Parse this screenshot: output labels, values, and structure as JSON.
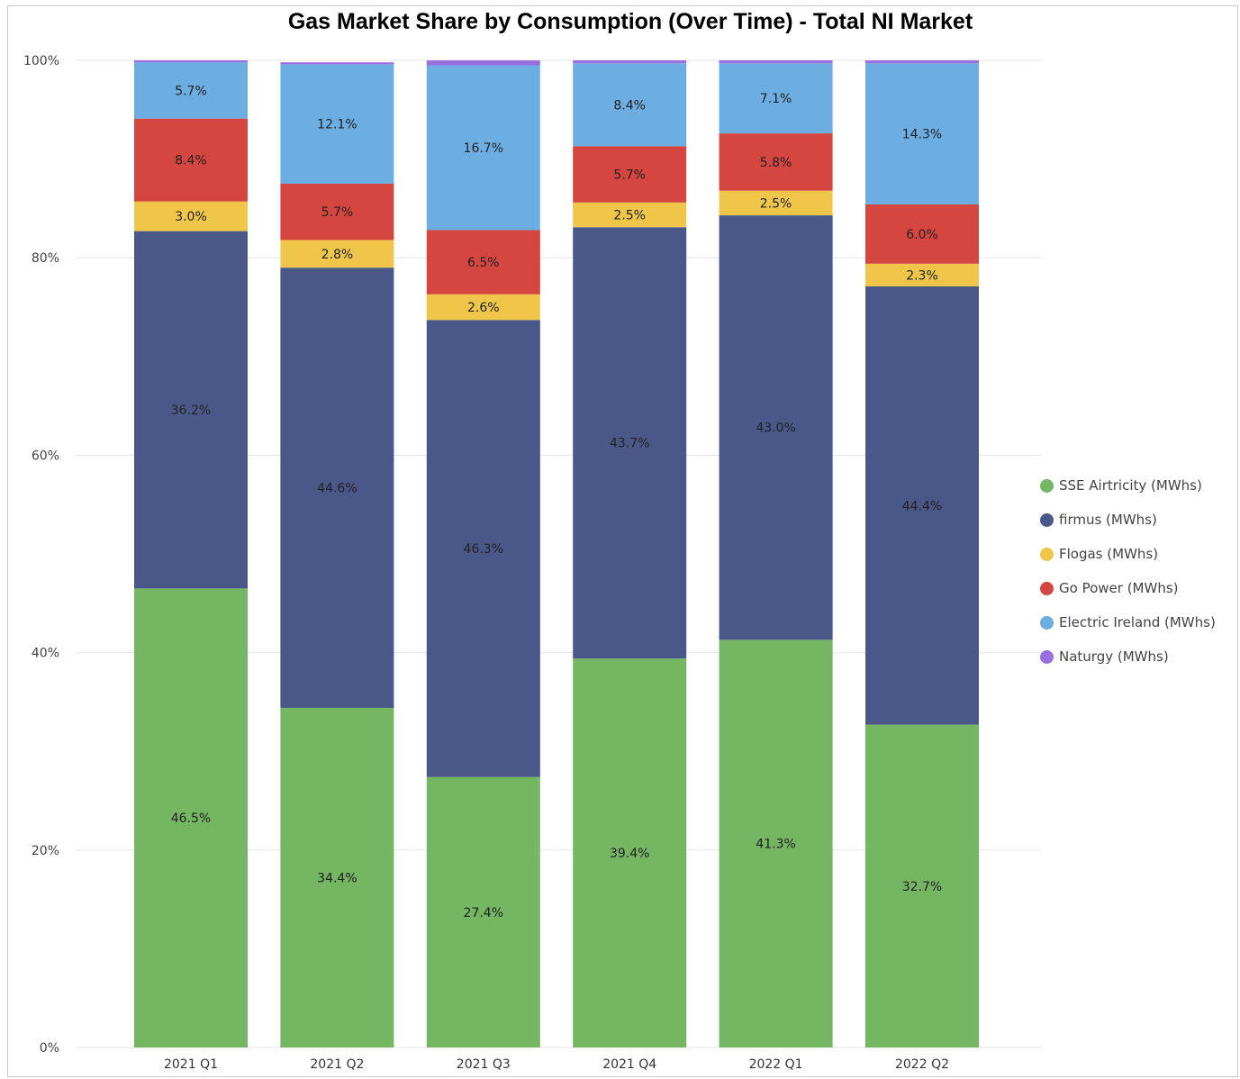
{
  "chart_data": {
    "type": "bar",
    "stacked": "percent",
    "title": "Gas Market Share by Consumption (Over Time) - Total NI Market",
    "categories": [
      "2021 Q1",
      "2021 Q2",
      "2021 Q3",
      "2021 Q4",
      "2022 Q1",
      "2022 Q2"
    ],
    "y_ticks": [
      "0%",
      "20%",
      "40%",
      "60%",
      "80%",
      "100%"
    ],
    "ylim": [
      0,
      100
    ],
    "grid": true,
    "legend_position": "right",
    "series": [
      {
        "name": "SSE Airtricity (MWhs)",
        "color": "#74b662",
        "values": [
          46.5,
          34.4,
          27.4,
          39.4,
          41.3,
          32.7
        ],
        "labels": [
          "46.5%",
          "34.4%",
          "27.4%",
          "39.4%",
          "41.3%",
          "32.7%"
        ]
      },
      {
        "name": "firmus (MWhs)",
        "color": "#4a5889",
        "values": [
          36.2,
          44.6,
          46.3,
          43.7,
          43.0,
          44.4
        ],
        "labels": [
          "36.2%",
          "44.6%",
          "46.3%",
          "43.7%",
          "43.0%",
          "44.4%"
        ]
      },
      {
        "name": "Flogas (MWhs)",
        "color": "#f0c64a",
        "values": [
          3.0,
          2.8,
          2.6,
          2.5,
          2.5,
          2.3
        ],
        "labels": [
          "3.0%",
          "2.8%",
          "2.6%",
          "2.5%",
          "2.5%",
          "2.3%"
        ]
      },
      {
        "name": "Go Power (MWhs)",
        "color": "#d4463f",
        "values": [
          8.4,
          5.7,
          6.5,
          5.7,
          5.8,
          6.0
        ],
        "labels": [
          "8.4%",
          "5.7%",
          "6.5%",
          "5.7%",
          "5.8%",
          "6.0%"
        ]
      },
      {
        "name": "Electric Ireland (MWhs)",
        "color": "#6daee2",
        "values": [
          5.7,
          12.1,
          16.7,
          8.4,
          7.1,
          14.3
        ],
        "labels": [
          "5.7%",
          "12.1%",
          "16.7%",
          "8.4%",
          "7.1%",
          "14.3%"
        ]
      },
      {
        "name": "Naturgy (MWhs)",
        "color": "#9b6ee0",
        "values": [
          0.2,
          0.2,
          0.5,
          0.3,
          0.3,
          0.3
        ],
        "labels": [
          "",
          "",
          "",
          "",
          "",
          ""
        ]
      }
    ]
  }
}
